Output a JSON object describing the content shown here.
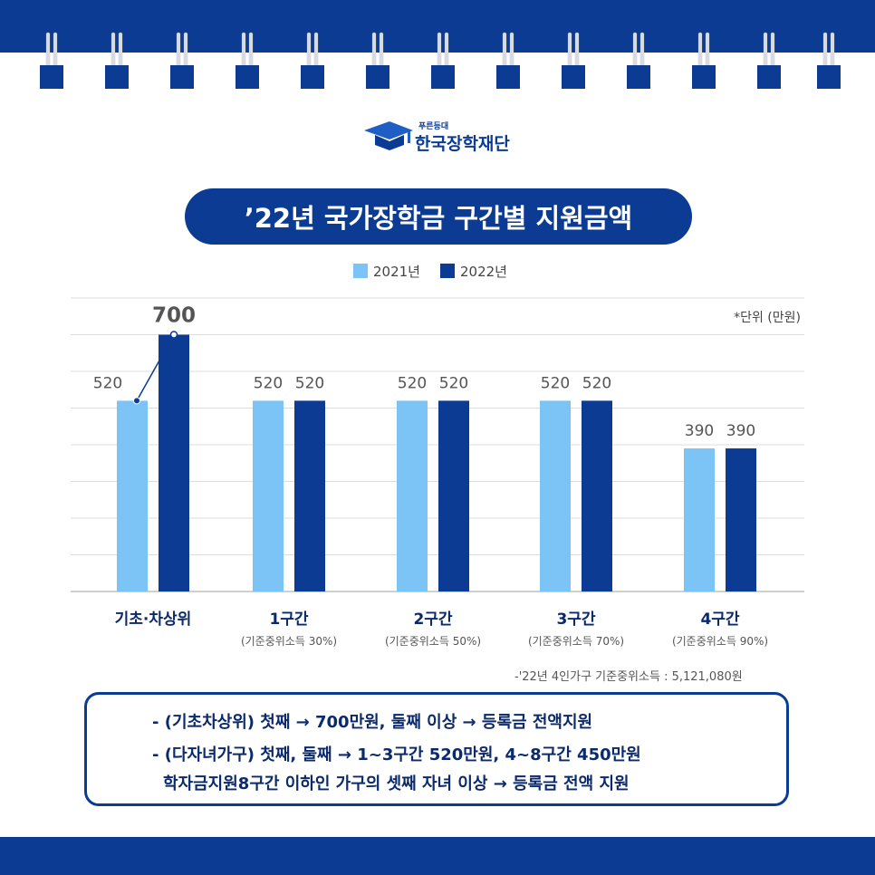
{
  "logo": {
    "sub": "푸른등대",
    "name": "한국장학재단"
  },
  "title": "’22년 국가장학금 구간별 지원금액",
  "unit_note": "*단위 (만원)",
  "footnote": "-'22년 4인가구 기준중위소득 : 5,121,080원",
  "colors": {
    "brand": "#0b3b92",
    "series_2021": "#7cc4f6",
    "series_2022": "#0b3b92"
  },
  "chart_data": {
    "type": "bar",
    "categories": [
      "기초·차상위",
      "1구간",
      "2구간",
      "3구간",
      "4구간"
    ],
    "category_subtitles": [
      "",
      "(기준중위소득 30%)",
      "(기준중위소득 50%)",
      "(기준중위소득 70%)",
      "(기준중위소득 90%)"
    ],
    "series": [
      {
        "name": "2021년",
        "values": [
          520,
          520,
          520,
          520,
          390
        ]
      },
      {
        "name": "2022년",
        "values": [
          700,
          520,
          520,
          520,
          390
        ]
      }
    ],
    "ylim": [
      0,
      800
    ],
    "grid": true,
    "legend": "top-center",
    "highlight": {
      "category": 0,
      "series": 1,
      "label": "700"
    }
  },
  "notes": [
    "- (기초차상위) 첫째 → 700만원, 둘째 이상 → 등록금 전액지원",
    "- (다자녀가구) 첫째, 둘째 → 1~3구간 520만원, 4~8구간 450만원",
    "학자금지원8구간 이하인 가구의 셋째 자녀 이상 → 등록금 전액 지원"
  ]
}
